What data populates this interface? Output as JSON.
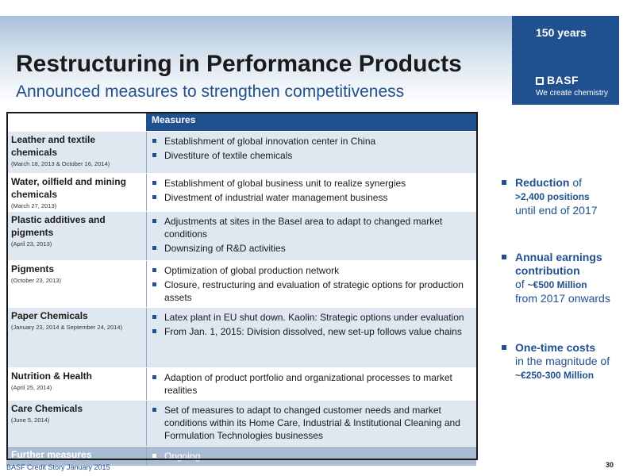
{
  "header": {
    "title": "Restructuring in Performance Products",
    "subtitle": "Announced measures to strengthen competitiveness"
  },
  "brand": {
    "years": "150 years",
    "logo": "BASF",
    "tagline": "We create chemistry",
    "color": "#21508f"
  },
  "table": {
    "header": "Measures",
    "rows": [
      {
        "name": "Leather and textile chemicals",
        "date": "(March 18, 2013 & October 16, 2014)",
        "measures": [
          "Establishment of global innovation center in China",
          "Divestiture of textile chemicals"
        ]
      },
      {
        "name": "Water, oilfield and mining chemicals",
        "date": "(March 27, 2013)",
        "measures": [
          "Establishment of global business unit to realize synergies",
          "Divestment of industrial water management business"
        ]
      },
      {
        "name": "Plastic additives and pigments",
        "date": "(April 23, 2013)",
        "measures": [
          "Adjustments at sites in the Basel area to adapt to changed market conditions",
          "Downsizing of R&D activities"
        ]
      },
      {
        "name": "Pigments",
        "date": "(October 23, 2013)",
        "measures": [
          "Optimization of global production network",
          "Closure, restructuring and evaluation of strategic options for production assets"
        ]
      },
      {
        "name": "Paper Chemicals",
        "date": "(January 23, 2014 & September 24, 2014)",
        "measures": [
          "Latex plant in EU shut down. Kaolin: Strategic options under evaluation",
          "From Jan. 1, 2015: Division dissolved, new set-up follows value chains"
        ]
      },
      {
        "name": "Nutrition & Health",
        "date": "(April 25, 2014)",
        "measures": [
          "Adaption of product portfolio and organizational processes to market realities"
        ]
      },
      {
        "name": "Care Chemicals",
        "date": "(June 5, 2014)",
        "measures": [
          "Set of measures to adapt to changed customer needs and market conditions within its Home Care, Industrial & Institutional Cleaning and Formulation Technologies businesses"
        ]
      },
      {
        "name": "Further measures",
        "date": "",
        "measures": [
          "Ongoing"
        ]
      }
    ]
  },
  "sidebar": {
    "reduction": {
      "bold": "Reduction",
      "of": " of",
      "figure": ">2,400 positions",
      "rest": "until end of 2017"
    },
    "earnings": {
      "bold": "Annual earnings contribution",
      "of": "of ",
      "figure": "~€500 Million",
      "rest": "from 2017 onwards"
    },
    "costs": {
      "bold": "One-time costs",
      "rest": "in the magnitude of",
      "figure": "~€250-300 Million"
    }
  },
  "footer": {
    "text": "BASF Credit Story January 2015",
    "page": "30"
  }
}
